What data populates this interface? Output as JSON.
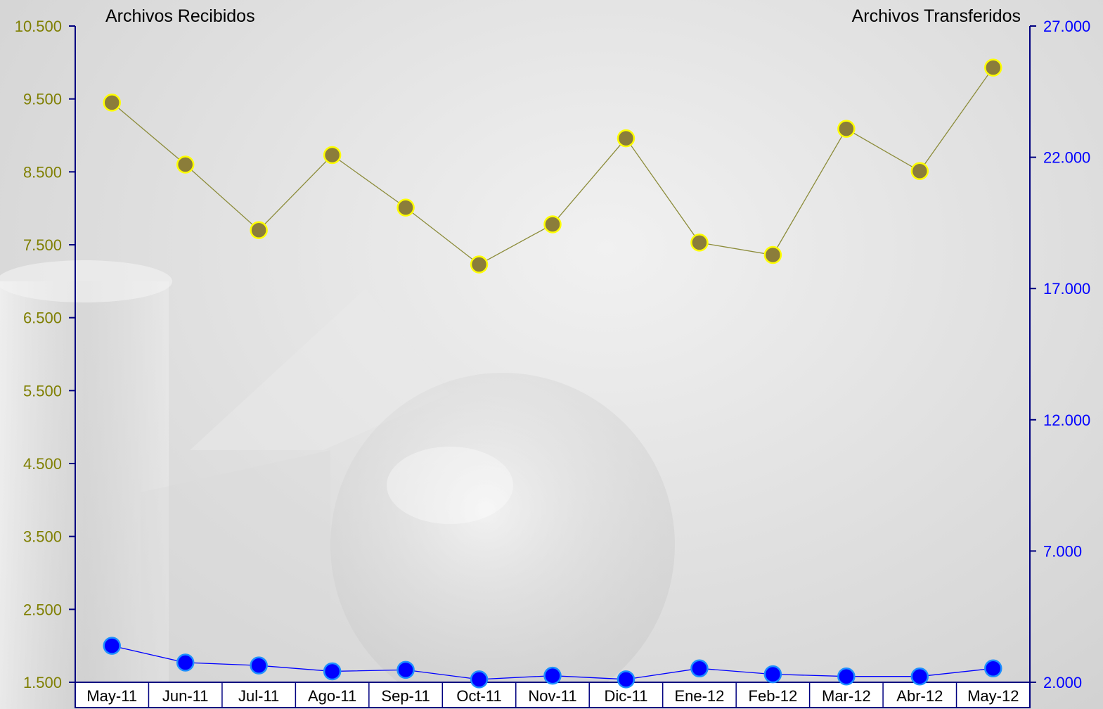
{
  "chart_data": {
    "type": "line",
    "categories": [
      "May-11",
      "Jun-11",
      "Jul-11",
      "Ago-11",
      "Sep-11",
      "Oct-11",
      "Nov-11",
      "Dic-11",
      "Ene-12",
      "Feb-12",
      "Mar-12",
      "Abr-12",
      "May-12"
    ],
    "left_axis": {
      "title": "Archivos Recibidos",
      "min": 1500,
      "max": 10500,
      "step": 1000,
      "ticks": [
        "1.500",
        "2.500",
        "3.500",
        "4.500",
        "5.500",
        "6.500",
        "7.500",
        "8.500",
        "9.500",
        "10.500"
      ],
      "color": "#7f7f00"
    },
    "right_axis": {
      "title": "Archivos Transferidos",
      "min": 2000,
      "max": 27000,
      "step": 5000,
      "ticks": [
        "2.000",
        "7.000",
        "12.000",
        "17.000",
        "22.000",
        "27.000"
      ],
      "color": "#0000ff"
    },
    "series": [
      {
        "axis": "left",
        "values": [
          9450,
          8600,
          7700,
          8730,
          8010,
          7230,
          7780,
          8960,
          7530,
          7360,
          9090,
          8510,
          9930
        ],
        "line_color": "#8c8c3a",
        "marker_fill": "#8b7d3a",
        "marker_stroke": "#ffff00"
      },
      {
        "axis": "left",
        "values": [
          2000,
          1770,
          1730,
          1650,
          1670,
          1540,
          1590,
          1540,
          1690,
          1610,
          1580,
          1580,
          1690
        ],
        "line_color": "#0000ff",
        "marker_fill": "#0000ff",
        "marker_stroke": "#1e90ff"
      }
    ],
    "grid": false,
    "axis_line_color": "#000080"
  }
}
